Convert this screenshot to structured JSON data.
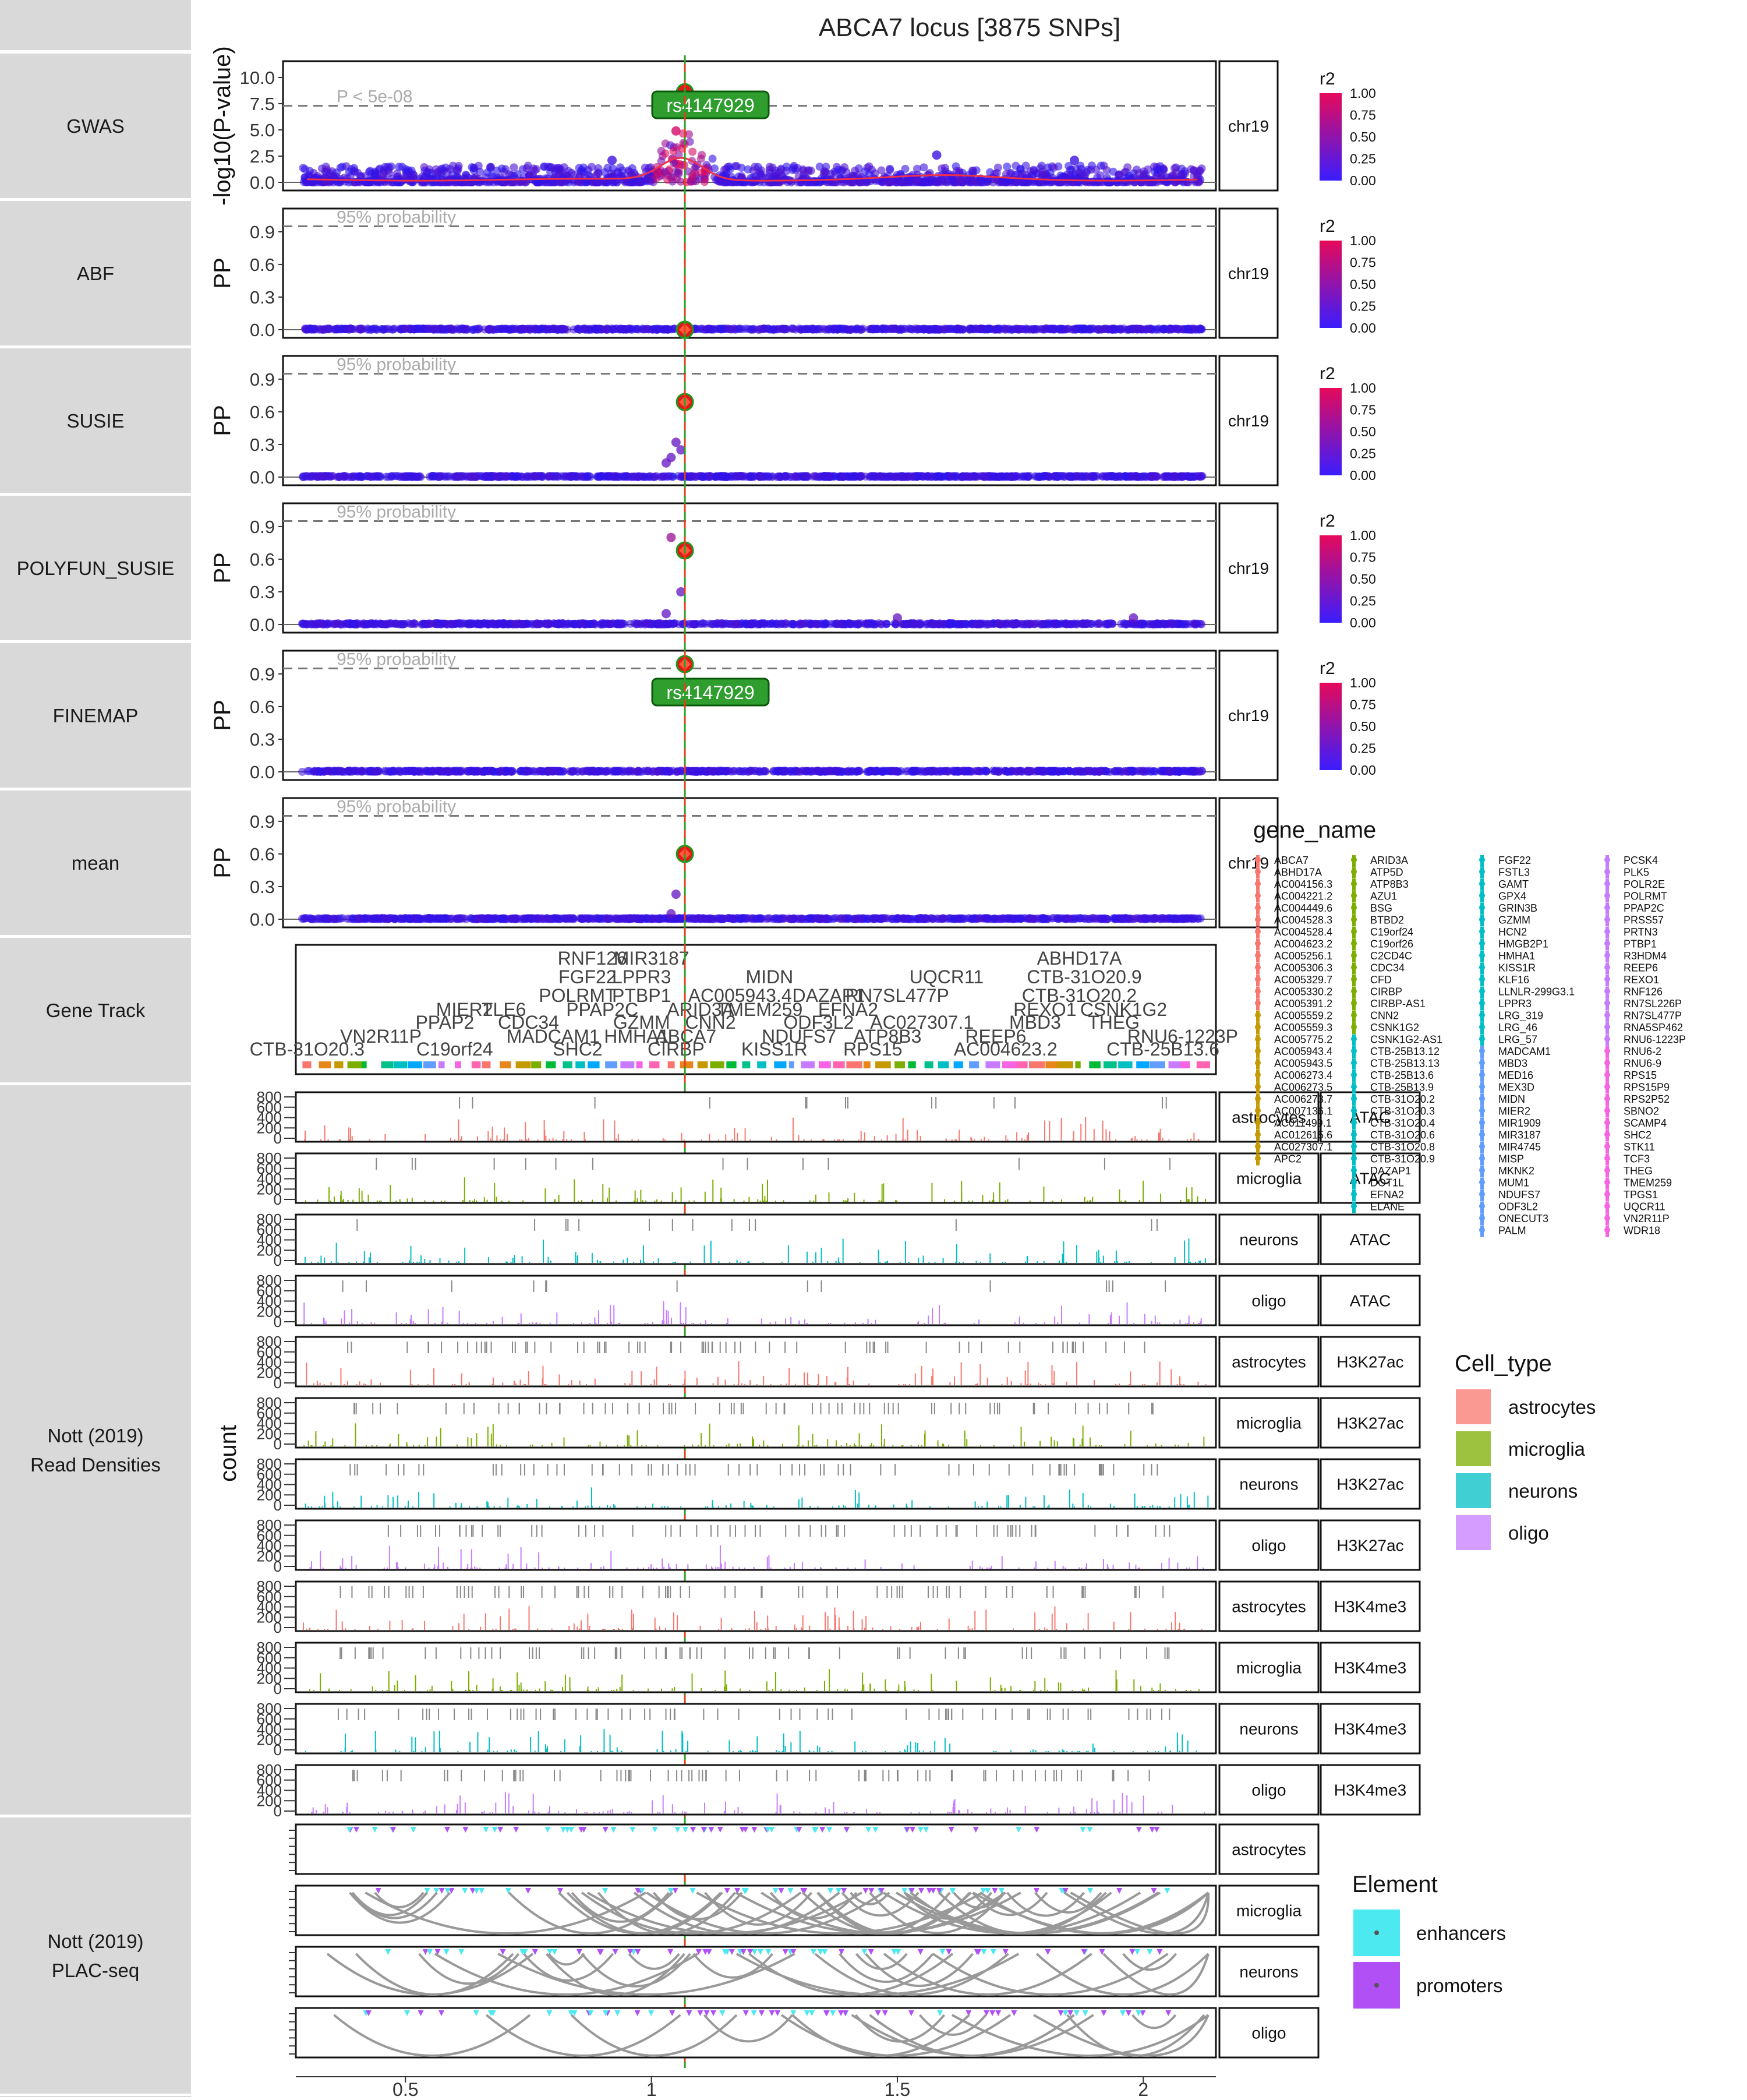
{
  "title": "ABCA7 locus [3875 SNPs]",
  "chrom": "chr19",
  "x_ticks": [
    "0.5",
    "1",
    "1.5",
    "2"
  ],
  "row_labels": {
    "gwas": "GWAS",
    "abf": "ABF",
    "susie": "SUSIE",
    "polyfun": "POLYFUN_SUSIE",
    "finemap": "FINEMAP",
    "mean": "mean",
    "gene_track": "Gene Track",
    "read_densities_1": "Nott (2019)",
    "read_densities_2": "Read Densities",
    "plac_1": "Nott (2019)",
    "plac_2": "PLAC-seq"
  },
  "gwas_ylabel": "-log10(P-value)",
  "pp_ylabel": "PP",
  "count_ylabel": "count",
  "gwas_ticks": [
    "0.0",
    "2.5",
    "5.0",
    "7.5",
    "10.0"
  ],
  "pp_ticks": [
    "0.0",
    "0.3",
    "0.6",
    "0.9"
  ],
  "count_ticks": [
    "0",
    "200",
    "400",
    "600",
    "800"
  ],
  "gwas_threshold_label": "P < 5e-08",
  "pp_threshold_label": "95% probability",
  "lead_snp_label": "rs4147929",
  "r2_legend": {
    "title": "r2",
    "ticks": [
      "1.00",
      "0.75",
      "0.50",
      "0.25",
      "0.00"
    ]
  },
  "gene_legend_title": "gene_name",
  "gene_columns": [
    [
      "ABCA7",
      "ABHD17A",
      "AC004156.3",
      "AC004221.2",
      "AC004449.6",
      "AC004528.3",
      "AC004528.4",
      "AC004623.2",
      "AC005256.1",
      "AC005306.3",
      "AC005329.7",
      "AC005330.2",
      "AC005391.2",
      "AC005559.2",
      "AC005559.3",
      "AC005775.2",
      "AC005943.4",
      "AC005943.5",
      "AC006273.4",
      "AC006273.5",
      "AC006273.7",
      "AC007136.1",
      "AC011499.1",
      "AC012615.6",
      "AC027307.1",
      "APC2"
    ],
    [
      "ARID3A",
      "ATP5D",
      "ATP8B3",
      "AZU1",
      "BSG",
      "BTBD2",
      "C19orf24",
      "C19orf26",
      "C2CD4C",
      "CDC34",
      "CFD",
      "CIRBP",
      "CIRBP-AS1",
      "CNN2",
      "CSNK1G2",
      "CSNK1G2-AS1",
      "CTB-25B13.12",
      "CTB-25B13.13",
      "CTB-25B13.6",
      "CTB-25B13.9",
      "CTB-31O20.2",
      "CTB-31O20.3",
      "CTB-31O20.4",
      "CTB-31O20.6",
      "CTB-31O20.8",
      "CTB-31O20.9",
      "DAZAP1",
      "DOT1L",
      "EFNA2",
      "ELANE"
    ],
    [
      "FGF22",
      "FSTL3",
      "GAMT",
      "GPX4",
      "GRIN3B",
      "GZMM",
      "HCN2",
      "HMGB2P1",
      "HMHA1",
      "KISS1R",
      "KLF16",
      "LLNLR-299G3.1",
      "LPPR3",
      "LRG_319",
      "LRG_46",
      "LRG_57",
      "MADCAM1",
      "MBD3",
      "MED16",
      "MEX3D",
      "MIDN",
      "MIER2",
      "MIR1909",
      "MIR3187",
      "MIR4745",
      "MISP",
      "MKNK2",
      "MUM1",
      "NDUFS7",
      "ODF3L2",
      "ONECUT3",
      "PALM"
    ],
    [
      "PCSK4",
      "PLK5",
      "POLR2E",
      "POLRMT",
      "PPAP2C",
      "PRSS57",
      "PRTN3",
      "PTBP1",
      "R3HDM4",
      "REEP6",
      "REXO1",
      "RNF126",
      "RN7SL226P",
      "RN7SL477P",
      "RNA5SP462",
      "RNU6-1223P",
      "RNU6-2",
      "RNU6-9",
      "RPS15",
      "RPS15P9",
      "RPS2P52",
      "SBNO2",
      "SCAMP4",
      "SHC2",
      "STK11",
      "TCF3",
      "THEG",
      "TMEM259",
      "TPGS1",
      "UQCR11",
      "VN2R11P",
      "WDR18"
    ]
  ],
  "gene_track_labels": [
    {
      "t": "RNF126",
      "x": 0.88,
      "r": 0
    },
    {
      "t": "MIR3187",
      "x": 1.0,
      "r": 0
    },
    {
      "t": "ABHD17A",
      "x": 1.87,
      "r": 0
    },
    {
      "t": "FGF22",
      "x": 0.87,
      "r": 1
    },
    {
      "t": "LPPR3",
      "x": 0.98,
      "r": 1
    },
    {
      "t": "MIDN",
      "x": 1.24,
      "r": 1
    },
    {
      "t": "UQCR11",
      "x": 1.6,
      "r": 1
    },
    {
      "t": "CTB-31O20.9",
      "x": 1.88,
      "r": 1
    },
    {
      "t": "POLRMT",
      "x": 0.85,
      "r": 2
    },
    {
      "t": "PTBP1",
      "x": 0.98,
      "r": 2
    },
    {
      "t": "AC005943.4",
      "x": 1.18,
      "r": 2
    },
    {
      "t": "DAZAP1",
      "x": 1.36,
      "r": 2
    },
    {
      "t": "RN7SL477P",
      "x": 1.5,
      "r": 2
    },
    {
      "t": "CTB-31O20.2",
      "x": 1.87,
      "r": 2
    },
    {
      "t": "MIER2",
      "x": 0.62,
      "r": 3
    },
    {
      "t": "TLE6",
      "x": 0.7,
      "r": 3
    },
    {
      "t": "PPAP2C",
      "x": 0.9,
      "r": 3
    },
    {
      "t": "ARID3A",
      "x": 1.1,
      "r": 3
    },
    {
      "t": "TMEM259",
      "x": 1.22,
      "r": 3
    },
    {
      "t": "EFNA2",
      "x": 1.4,
      "r": 3
    },
    {
      "t": "REXO1",
      "x": 1.8,
      "r": 3
    },
    {
      "t": "CSNK1G2",
      "x": 1.96,
      "r": 3
    },
    {
      "t": "PPAP2",
      "x": 0.58,
      "r": 4
    },
    {
      "t": "CDC34",
      "x": 0.75,
      "r": 4
    },
    {
      "t": "GZMM",
      "x": 0.98,
      "r": 4
    },
    {
      "t": "CNN2",
      "x": 1.12,
      "r": 4
    },
    {
      "t": "ODF3L2",
      "x": 1.34,
      "r": 4
    },
    {
      "t": "AC027307.1",
      "x": 1.55,
      "r": 4
    },
    {
      "t": "MBD3",
      "x": 1.78,
      "r": 4
    },
    {
      "t": "THEG",
      "x": 1.94,
      "r": 4
    },
    {
      "t": "VN2R11P",
      "x": 0.45,
      "r": 5
    },
    {
      "t": "MADCAM1",
      "x": 0.8,
      "r": 5
    },
    {
      "t": "HMHA1",
      "x": 0.97,
      "r": 5
    },
    {
      "t": "ABCA7",
      "x": 1.07,
      "r": 5
    },
    {
      "t": "NDUFS7",
      "x": 1.3,
      "r": 5
    },
    {
      "t": "ATP8B3",
      "x": 1.48,
      "r": 5
    },
    {
      "t": "REEP6",
      "x": 1.7,
      "r": 5
    },
    {
      "t": "RNU6-1223P",
      "x": 2.08,
      "r": 5
    },
    {
      "t": "CTB-31O20.3",
      "x": 0.3,
      "r": 6
    },
    {
      "t": "C19orf24",
      "x": 0.6,
      "r": 6
    },
    {
      "t": "SHC2",
      "x": 0.85,
      "r": 6
    },
    {
      "t": "CIRBP",
      "x": 1.05,
      "r": 6
    },
    {
      "t": "KISS1R",
      "x": 1.25,
      "r": 6
    },
    {
      "t": "RPS15",
      "x": 1.45,
      "r": 6
    },
    {
      "t": "AC004623.2",
      "x": 1.72,
      "r": 6
    },
    {
      "t": "CTB-25B13.6",
      "x": 2.04,
      "r": 6
    }
  ],
  "gwas_data": {
    "lead_snp": {
      "name": "rs4147929",
      "x": 1.068,
      "y": 8.6
    },
    "smoothing_peak": 2.1,
    "peaks": [
      {
        "x": 0.92,
        "y": 2.1
      },
      {
        "x": 1.05,
        "y": 4.9
      },
      {
        "x": 1.07,
        "y": 8.6
      },
      {
        "x": 1.58,
        "y": 2.6
      },
      {
        "x": 1.86,
        "y": 2.1
      }
    ]
  },
  "pp_data": {
    "abf": {
      "lead": 0.0,
      "others": []
    },
    "susie": {
      "lead": 0.69,
      "others": [
        {
          "x": 1.05,
          "y": 0.32
        },
        {
          "x": 1.04,
          "y": 0.18
        },
        {
          "x": 1.03,
          "y": 0.13
        },
        {
          "x": 1.06,
          "y": 0.25
        }
      ]
    },
    "polyfun": {
      "lead": 0.68,
      "others": [
        {
          "x": 1.04,
          "y": 0.8
        },
        {
          "x": 1.06,
          "y": 0.3
        },
        {
          "x": 1.03,
          "y": 0.1
        },
        {
          "x": 1.5,
          "y": 0.06
        },
        {
          "x": 1.98,
          "y": 0.06
        }
      ]
    },
    "finemap": {
      "lead": 0.99,
      "others": []
    },
    "mean": {
      "lead": 0.6,
      "others": [
        {
          "x": 1.05,
          "y": 0.23
        },
        {
          "x": 1.04,
          "y": 0.05
        }
      ]
    }
  },
  "density_tracks": [
    {
      "cell": "astrocytes",
      "assay": "ATAC",
      "color": "#F8766D"
    },
    {
      "cell": "microglia",
      "assay": "ATAC",
      "color": "#7CAE00"
    },
    {
      "cell": "neurons",
      "assay": "ATAC",
      "color": "#00BFC4"
    },
    {
      "cell": "oligo",
      "assay": "ATAC",
      "color": "#C77CFF"
    },
    {
      "cell": "astrocytes",
      "assay": "H3K27ac",
      "color": "#F8766D"
    },
    {
      "cell": "microglia",
      "assay": "H3K27ac",
      "color": "#7CAE00"
    },
    {
      "cell": "neurons",
      "assay": "H3K27ac",
      "color": "#00BFC4"
    },
    {
      "cell": "oligo",
      "assay": "H3K27ac",
      "color": "#C77CFF"
    },
    {
      "cell": "astrocytes",
      "assay": "H3K4me3",
      "color": "#F8766D"
    },
    {
      "cell": "microglia",
      "assay": "H3K4me3",
      "color": "#7CAE00"
    },
    {
      "cell": "neurons",
      "assay": "H3K4me3",
      "color": "#00BFC4"
    },
    {
      "cell": "oligo",
      "assay": "H3K4me3",
      "color": "#C77CFF"
    }
  ],
  "plac_tracks": [
    {
      "cell": "astrocytes",
      "arcs": 0
    },
    {
      "cell": "microglia",
      "arcs": 40
    },
    {
      "cell": "neurons",
      "arcs": 22
    },
    {
      "cell": "oligo",
      "arcs": 14
    }
  ],
  "cell_type_legend": {
    "title": "Cell_type",
    "items": [
      {
        "label": "astrocytes",
        "color": "#F8766D"
      },
      {
        "label": "microglia",
        "color": "#7CAE00"
      },
      {
        "label": "neurons",
        "color": "#00BFC4"
      },
      {
        "label": "oligo",
        "color": "#C77CFF"
      }
    ]
  },
  "element_legend": {
    "title": "Element",
    "items": [
      {
        "label": "enhancers",
        "color": "#4DE9F0"
      },
      {
        "label": "promoters",
        "color": "#B050F5"
      }
    ]
  },
  "chart_data": {
    "type": "scatter",
    "title": "ABCA7 locus [3875 SNPs]",
    "xlim": [
      0.27,
      2.15
    ],
    "panels": [
      {
        "name": "GWAS",
        "ylabel": "-log10(P-value)",
        "ylim": [
          0,
          10
        ],
        "threshold": 7.3,
        "lead": {
          "snp": "rs4147929",
          "x": 1.068,
          "y": 8.6
        }
      },
      {
        "name": "ABF",
        "ylabel": "PP",
        "ylim": [
          0,
          1
        ],
        "threshold": 0.95,
        "lead": {
          "x": 1.068,
          "y": 0.0
        }
      },
      {
        "name": "SUSIE",
        "ylabel": "PP",
        "ylim": [
          0,
          1
        ],
        "threshold": 0.95,
        "lead": {
          "x": 1.068,
          "y": 0.69
        }
      },
      {
        "name": "POLYFUN_SUSIE",
        "ylabel": "PP",
        "ylim": [
          0,
          1
        ],
        "threshold": 0.95,
        "lead": {
          "x": 1.068,
          "y": 0.68
        }
      },
      {
        "name": "FINEMAP",
        "ylabel": "PP",
        "ylim": [
          0,
          1
        ],
        "threshold": 0.95,
        "lead": {
          "snp": "rs4147929",
          "x": 1.068,
          "y": 0.99
        }
      },
      {
        "name": "mean",
        "ylabel": "PP",
        "ylim": [
          0,
          1
        ],
        "threshold": 0.95,
        "lead": {
          "x": 1.068,
          "y": 0.6
        }
      }
    ],
    "count_ylim": [
      0,
      800
    ]
  }
}
